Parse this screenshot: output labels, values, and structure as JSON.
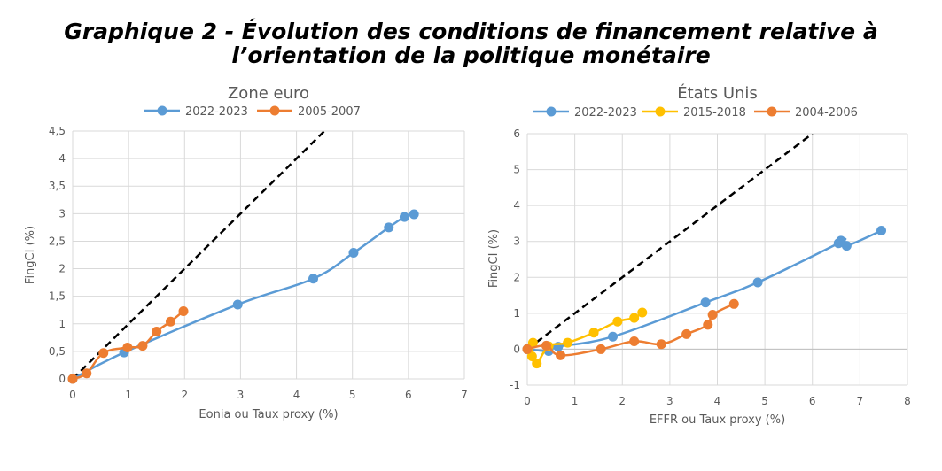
{
  "page_title": {
    "line1": "Graphique 2 - Évolution des conditions de financement relative à",
    "line2": "l’orientation de la politique monétaire"
  },
  "colors": {
    "blue": "#5B9BD5",
    "orange": "#ED7D31",
    "yellow": "#FFC000",
    "ref_line": "#000000",
    "grid": "#D9D9D9"
  },
  "chart_data": [
    {
      "type": "line",
      "title": "Zone euro",
      "xlabel": "Eonia ou Taux proxy (%)",
      "ylabel": "FingCI (%)",
      "xlim": [
        0,
        7
      ],
      "ylim": [
        0,
        4.5
      ],
      "x_ticks": [
        "0",
        "1",
        "2",
        "3",
        "4",
        "5",
        "6",
        "7"
      ],
      "y_ticks": [
        "0",
        "0,5",
        "1",
        "1,5",
        "2",
        "2,5",
        "3",
        "3,5",
        "4",
        "4,5"
      ],
      "grid": true,
      "legend_position": "top",
      "reference_line": "y = x (dashed)",
      "series": [
        {
          "name": "2022-2023",
          "color": "#5B9BD5",
          "points": [
            [
              0,
              0
            ],
            [
              0.92,
              0.48
            ],
            [
              2.95,
              1.35
            ],
            [
              4.3,
              1.82
            ],
            [
              5.02,
              2.29
            ],
            [
              5.65,
              2.75
            ],
            [
              5.93,
              2.94
            ],
            [
              6.1,
              2.99
            ]
          ]
        },
        {
          "name": "2005-2007",
          "color": "#ED7D31",
          "points": [
            [
              0,
              0
            ],
            [
              0.25,
              0.1
            ],
            [
              0.55,
              0.47
            ],
            [
              0.98,
              0.57
            ],
            [
              1.25,
              0.6
            ],
            [
              1.5,
              0.86
            ],
            [
              1.75,
              1.04
            ],
            [
              1.98,
              1.23
            ]
          ]
        }
      ]
    },
    {
      "type": "line",
      "title": "États Unis",
      "xlabel": "EFFR ou Taux proxy (%)",
      "ylabel": "FingCI (%)",
      "xlim": [
        0,
        8
      ],
      "ylim": [
        -1,
        6
      ],
      "x_ticks": [
        "0",
        "1",
        "2",
        "3",
        "4",
        "5",
        "6",
        "7",
        "8"
      ],
      "y_ticks": [
        "-1",
        "0",
        "1",
        "2",
        "3",
        "4",
        "5",
        "6"
      ],
      "grid": true,
      "legend_position": "top",
      "reference_line": "y = x (dashed)",
      "series": [
        {
          "name": "2022-2023",
          "color": "#5B9BD5",
          "points": [
            [
              0,
              0
            ],
            [
              0.45,
              -0.05
            ],
            [
              0.65,
              0.07
            ],
            [
              1.8,
              0.35
            ],
            [
              3.75,
              1.3
            ],
            [
              4.85,
              1.86
            ],
            [
              6.55,
              2.95
            ],
            [
              6.6,
              3.02
            ],
            [
              6.72,
              2.88
            ],
            [
              7.45,
              3.3
            ]
          ]
        },
        {
          "name": "2015-2018",
          "color": "#FFC000",
          "points": [
            [
              0.12,
              0.18
            ],
            [
              0.1,
              -0.2
            ],
            [
              0.2,
              -0.4
            ],
            [
              0.45,
              0.08
            ],
            [
              0.85,
              0.18
            ],
            [
              1.4,
              0.46
            ],
            [
              1.9,
              0.77
            ],
            [
              2.25,
              0.87
            ],
            [
              2.42,
              1.02
            ]
          ]
        },
        {
          "name": "2004-2006",
          "color": "#ED7D31",
          "points": [
            [
              0,
              0
            ],
            [
              0.4,
              0.1
            ],
            [
              0.7,
              -0.17
            ],
            [
              1.55,
              0.0
            ],
            [
              2.25,
              0.22
            ],
            [
              2.82,
              0.14
            ],
            [
              3.35,
              0.42
            ],
            [
              3.8,
              0.68
            ],
            [
              3.9,
              0.96
            ],
            [
              4.35,
              1.26
            ]
          ]
        }
      ]
    }
  ]
}
